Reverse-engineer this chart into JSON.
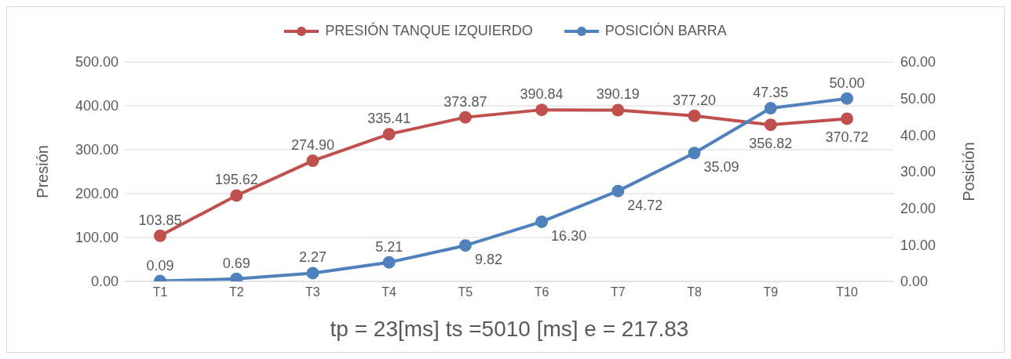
{
  "chart_data": {
    "type": "line",
    "xlabel": "tp = 23[ms]  ts =5010 [ms]  e = 217.83",
    "ylabel": "Presión",
    "y2label": "Posición",
    "categories": [
      "T1",
      "T2",
      "T3",
      "T4",
      "T5",
      "T6",
      "T7",
      "T8",
      "T9",
      "T10"
    ],
    "series": [
      {
        "name": "PRESIÓN TANQUE IZQUIERDO",
        "color": "#c0504d",
        "values": [
          103.85,
          195.62,
          274.9,
          335.41,
          373.87,
          390.84,
          390.19,
          377.2,
          356.82,
          370.72
        ],
        "value_labels": [
          "103.85",
          "195.62",
          "274.90",
          "335.41",
          "373.87",
          "390.84",
          "390.19",
          "377.20",
          "356.82",
          "370.72"
        ]
      },
      {
        "name": "POSICIÓN BARRA",
        "color": "#4f81bd",
        "axis": "y2",
        "values": [
          0.09,
          0.69,
          2.27,
          5.21,
          9.82,
          16.3,
          24.72,
          35.09,
          47.35,
          50.0
        ],
        "value_labels": [
          "0.09",
          "0.69",
          "2.27",
          "5.21",
          "9.82",
          "16.30",
          "24.72",
          "35.09",
          "47.35",
          "50.00"
        ]
      }
    ],
    "ylim": [
      0,
      500
    ],
    "yticks": [
      {
        "value": 0,
        "label": "0.00"
      },
      {
        "value": 100,
        "label": "100.00"
      },
      {
        "value": 200,
        "label": "200.00"
      },
      {
        "value": 300,
        "label": "300.00"
      },
      {
        "value": 400,
        "label": "400.00"
      },
      {
        "value": 500,
        "label": "500.00"
      }
    ],
    "y2lim": [
      0,
      60
    ],
    "y2ticks": [
      {
        "value": 0,
        "label": "0.00"
      },
      {
        "value": 10,
        "label": "10.00"
      },
      {
        "value": 20,
        "label": "20.00"
      },
      {
        "value": 30,
        "label": "30.00"
      },
      {
        "value": 40,
        "label": "40.00"
      },
      {
        "value": 50,
        "label": "50.00"
      },
      {
        "value": 60,
        "label": "60.00"
      }
    ],
    "grid": "y",
    "legend": "top",
    "marker": "circle",
    "line_style": "solid"
  }
}
